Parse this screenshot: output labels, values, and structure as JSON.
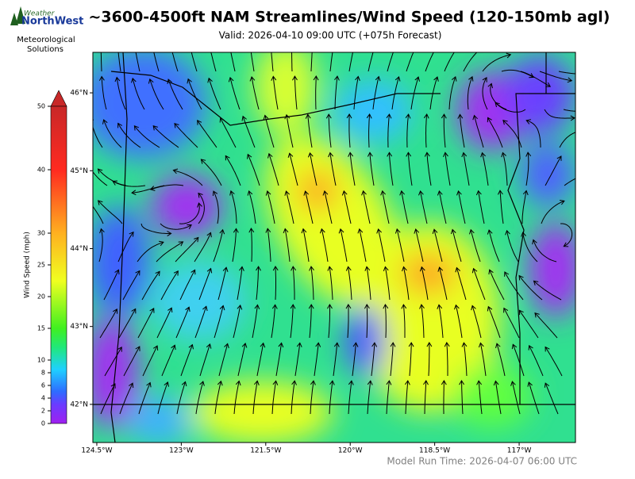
{
  "header": {
    "logo_top": "Weather",
    "logo_brand": "NorthWest",
    "logo_caption_1": "Meteorological",
    "logo_caption_2": "Solutions",
    "title": "~3600-4500ft NAM Streamlines/Wind Speed (120-150mb agl)",
    "subtitle": "Valid: 2026-04-10 09:00 UTC  (+075h Forecast)"
  },
  "map": {
    "xlim": [
      -124.57,
      -116.0
    ],
    "ylim": [
      41.51,
      46.52
    ],
    "xticks": [
      {
        "value": -124.5,
        "label": "124.5°W"
      },
      {
        "value": -123,
        "label": "123°W"
      },
      {
        "value": -121.5,
        "label": "121.5°W"
      },
      {
        "value": -120,
        "label": "120°W"
      },
      {
        "value": -118.5,
        "label": "118.5°W"
      },
      {
        "value": -117,
        "label": "117°W"
      }
    ],
    "yticks": [
      {
        "value": 42,
        "label": "42°N"
      },
      {
        "value": 43,
        "label": "43°N"
      },
      {
        "value": 44,
        "label": "44°N"
      },
      {
        "value": 45,
        "label": "45°N"
      },
      {
        "value": 46,
        "label": "46°N"
      }
    ]
  },
  "colorbar": {
    "label": "Wind Speed (mph)",
    "lim": [
      0,
      50
    ],
    "ticks": [
      0,
      2,
      4,
      6,
      8,
      10,
      15,
      20,
      25,
      30,
      40,
      50
    ]
  },
  "footer": {
    "model_run": "Model Run Time: 2026-04-07 06:00 UTC"
  }
}
